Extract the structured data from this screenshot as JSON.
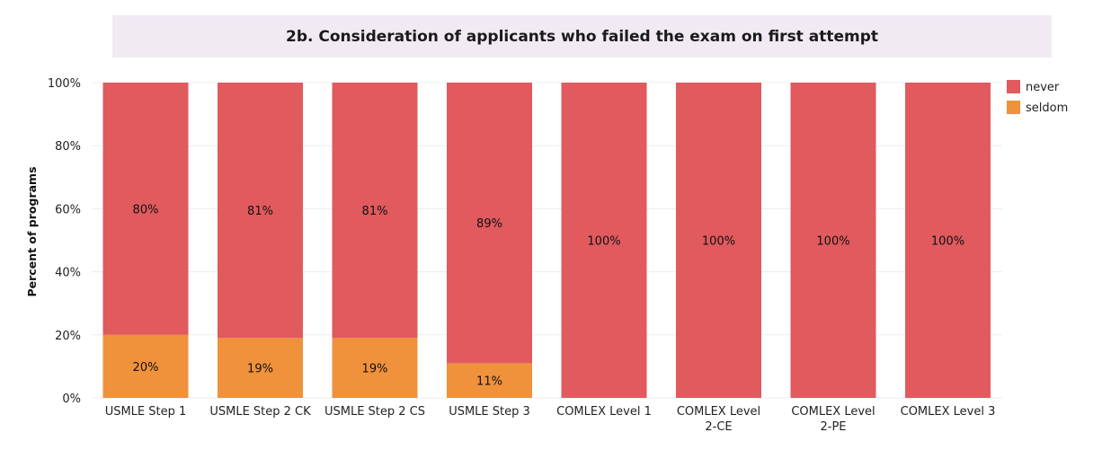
{
  "chart_data": {
    "type": "bar",
    "stacked": true,
    "title": "2b. Consideration of applicants who failed the exam on first attempt",
    "ylabel": "Percent of programs",
    "ylim": [
      0,
      100
    ],
    "yticks": [
      "0%",
      "20%",
      "40%",
      "60%",
      "80%",
      "100%"
    ],
    "categories": [
      [
        "USMLE Step 1"
      ],
      [
        "USMLE Step 2 CK"
      ],
      [
        "USMLE Step 2 CS"
      ],
      [
        "USMLE Step 3"
      ],
      [
        "COMLEX Level 1"
      ],
      [
        "COMLEX Level",
        "2-CE"
      ],
      [
        "COMLEX Level",
        "2-PE"
      ],
      [
        "COMLEX Level 3"
      ]
    ],
    "series": [
      {
        "name": "seldom",
        "color": "#f0913b",
        "values": [
          20,
          19,
          19,
          11,
          0,
          0,
          0,
          0
        ],
        "labels": [
          "20%",
          "19%",
          "19%",
          "11%",
          "",
          "",
          "",
          ""
        ]
      },
      {
        "name": "never",
        "color": "#e05a5e",
        "values": [
          80,
          81,
          81,
          89,
          100,
          100,
          100,
          100
        ],
        "labels": [
          "80%",
          "81%",
          "81%",
          "89%",
          "100%",
          "100%",
          "100%",
          "100%"
        ]
      }
    ],
    "legend": [
      "never",
      "seldom"
    ],
    "legend_position": "top-right",
    "grid": true
  }
}
